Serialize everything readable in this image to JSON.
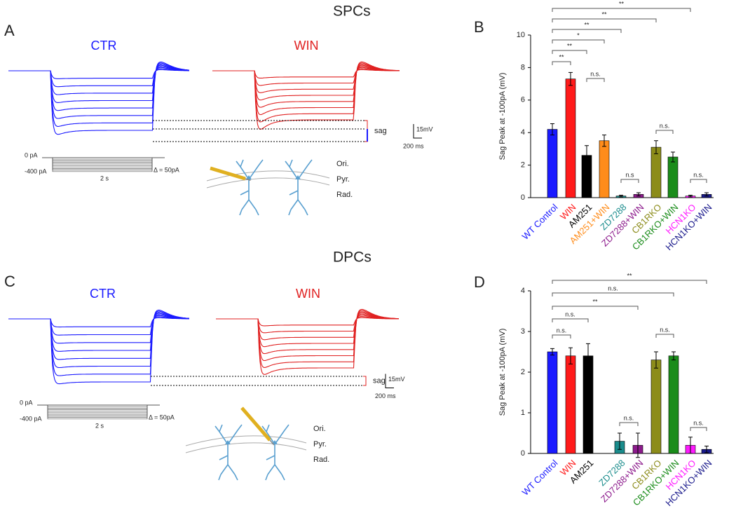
{
  "figure": {
    "rows": [
      {
        "title": "SPCs",
        "left_label": "A",
        "right_label": "B",
        "traces": [
          "CTR",
          "WIN"
        ],
        "sag": "sag",
        "scale_v": "15mV",
        "scale_t": "200 ms",
        "step_0": "0 pA",
        "step_min": "-400 pA",
        "step_delta": "Δ = 50pA",
        "duration": "2 s",
        "layers": [
          "Ori.",
          "Pyr.",
          "Rad."
        ]
      },
      {
        "title": "DPCs",
        "left_label": "C",
        "right_label": "D",
        "traces": [
          "CTR",
          "WIN"
        ],
        "sag": "sag",
        "scale_v": "15mV",
        "scale_t": "200 ms",
        "step_0": "0 pA",
        "step_min": "-400 pA",
        "step_delta": "Δ = 50pA",
        "duration": "2 s",
        "layers": [
          "Ori.",
          "Pyr.",
          "Rad."
        ]
      }
    ]
  },
  "chart_data": [
    {
      "type": "bar",
      "y_label": "Sag Peak at -100pA (mV)",
      "categories": [
        "WT Control",
        "WIN",
        "AM251",
        "AM251+WIN",
        "ZD7288",
        "ZD7288+WIN",
        "CB1RKO",
        "CB1RKO+WIN",
        "HCN1KO",
        "HCN1KO+WIN"
      ],
      "values": [
        4.2,
        7.3,
        2.6,
        3.5,
        0.1,
        0.2,
        3.1,
        2.5,
        0.1,
        0.2
      ],
      "errors": [
        0.35,
        0.4,
        0.6,
        0.35,
        0.05,
        0.1,
        0.4,
        0.3,
        0.05,
        0.1
      ],
      "colors": [
        "#1a1aff",
        "#ff1a1a",
        "#000000",
        "#ff8c1a",
        "#1a8c8c",
        "#8c1a8c",
        "#8c8c1a",
        "#1a8c1a",
        "#ff1aff",
        "#1a1a8c"
      ],
      "ylim": [
        0,
        10
      ],
      "yticks": [
        0,
        2,
        4,
        6,
        8,
        10
      ],
      "annotations": [
        "**",
        "**",
        "**",
        "*",
        "**",
        "**",
        "n.s.",
        "n.s",
        "n.s.",
        "n.s."
      ]
    },
    {
      "type": "bar",
      "y_label": "Sag Peak at -100pA (mV)",
      "categories": [
        "WT Control",
        "WIN",
        "AM251",
        "ZD7288",
        "ZD7288+WIN",
        "CB1RKO",
        "CB1RKO+WIN",
        "HCN1KO",
        "HCN1KO+WIN"
      ],
      "values": [
        2.5,
        2.4,
        2.4,
        0.3,
        0.2,
        2.3,
        2.4,
        0.2,
        0.1
      ],
      "errors": [
        0.08,
        0.2,
        0.3,
        0.2,
        0.3,
        0.2,
        0.1,
        0.2,
        0.08
      ],
      "colors": [
        "#1a1aff",
        "#ff1a1a",
        "#000000",
        "#1a8c8c",
        "#8c1a8c",
        "#8c8c1a",
        "#1a8c1a",
        "#ff1aff",
        "#1a1a8c"
      ],
      "ylim": [
        0,
        4
      ],
      "yticks": [
        0,
        1,
        2,
        3,
        4
      ],
      "annotations": [
        "**",
        "n.s.",
        "**",
        "n.s.",
        "n.s.",
        "n.s.",
        "n.s.",
        "n.s."
      ]
    }
  ]
}
